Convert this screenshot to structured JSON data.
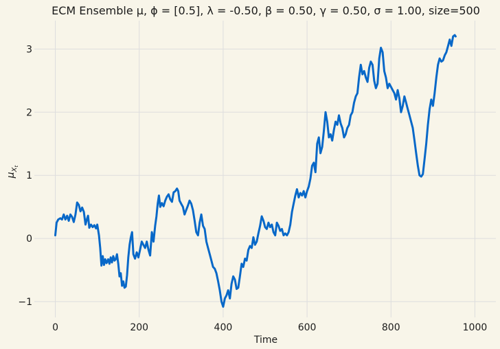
{
  "chart_data": {
    "type": "line",
    "title": "ECM Ensemble μ, ϕ = [0.5], λ = -0.50, β = 0.50, γ = 0.50, σ = 1.00, size=500",
    "xlabel": "Time",
    "ylabel": "μ",
    "ylabel_subscript": "X",
    "ylabel_subsubscript": "t",
    "xlim": [
      -50,
      1050
    ],
    "ylim": [
      -1.25,
      3.45
    ],
    "x_ticks": [
      0,
      200,
      400,
      600,
      800,
      1000
    ],
    "y_ticks": [
      -1,
      0,
      1,
      2,
      3
    ],
    "y_tick_labels": [
      "−1",
      "0",
      "1",
      "2",
      "3"
    ],
    "grid": true,
    "series": [
      {
        "color": "#0868c8",
        "points": [
          [
            0,
            0.05
          ],
          [
            3,
            0.25
          ],
          [
            7,
            0.3
          ],
          [
            12,
            0.32
          ],
          [
            16,
            0.3
          ],
          [
            20,
            0.38
          ],
          [
            24,
            0.3
          ],
          [
            28,
            0.36
          ],
          [
            32,
            0.28
          ],
          [
            36,
            0.38
          ],
          [
            40,
            0.34
          ],
          [
            44,
            0.26
          ],
          [
            48,
            0.38
          ],
          [
            52,
            0.57
          ],
          [
            56,
            0.53
          ],
          [
            60,
            0.43
          ],
          [
            64,
            0.49
          ],
          [
            68,
            0.42
          ],
          [
            72,
            0.22
          ],
          [
            75,
            0.3
          ],
          [
            78,
            0.36
          ],
          [
            81,
            0.17
          ],
          [
            85,
            0.22
          ],
          [
            89,
            0.18
          ],
          [
            93,
            0.21
          ],
          [
            97,
            0.16
          ],
          [
            100,
            0.22
          ],
          [
            104,
            0.05
          ],
          [
            107,
            -0.15
          ],
          [
            110,
            -0.43
          ],
          [
            113,
            -0.28
          ],
          [
            116,
            -0.42
          ],
          [
            119,
            -0.33
          ],
          [
            122,
            -0.39
          ],
          [
            126,
            -0.33
          ],
          [
            129,
            -0.4
          ],
          [
            132,
            -0.3
          ],
          [
            135,
            -0.38
          ],
          [
            138,
            -0.28
          ],
          [
            141,
            -0.35
          ],
          [
            144,
            -0.33
          ],
          [
            147,
            -0.25
          ],
          [
            150,
            -0.4
          ],
          [
            153,
            -0.6
          ],
          [
            156,
            -0.55
          ],
          [
            159,
            -0.75
          ],
          [
            162,
            -0.68
          ],
          [
            165,
            -0.78
          ],
          [
            168,
            -0.76
          ],
          [
            171,
            -0.58
          ],
          [
            174,
            -0.3
          ],
          [
            177,
            -0.1
          ],
          [
            180,
            0.02
          ],
          [
            183,
            0.1
          ],
          [
            186,
            -0.25
          ],
          [
            190,
            -0.32
          ],
          [
            194,
            -0.22
          ],
          [
            198,
            -0.3
          ],
          [
            202,
            -0.18
          ],
          [
            206,
            -0.05
          ],
          [
            210,
            -0.1
          ],
          [
            214,
            -0.15
          ],
          [
            218,
            -0.05
          ],
          [
            222,
            -0.18
          ],
          [
            226,
            -0.27
          ],
          [
            230,
            0.1
          ],
          [
            234,
            -0.05
          ],
          [
            238,
            0.2
          ],
          [
            241,
            0.35
          ],
          [
            244,
            0.55
          ],
          [
            247,
            0.68
          ],
          [
            250,
            0.5
          ],
          [
            254,
            0.56
          ],
          [
            258,
            0.51
          ],
          [
            262,
            0.6
          ],
          [
            266,
            0.66
          ],
          [
            270,
            0.7
          ],
          [
            274,
            0.62
          ],
          [
            278,
            0.58
          ],
          [
            282,
            0.73
          ],
          [
            286,
            0.75
          ],
          [
            290,
            0.79
          ],
          [
            293,
            0.75
          ],
          [
            296,
            0.6
          ],
          [
            300,
            0.55
          ],
          [
            304,
            0.5
          ],
          [
            308,
            0.38
          ],
          [
            312,
            0.45
          ],
          [
            316,
            0.52
          ],
          [
            320,
            0.6
          ],
          [
            324,
            0.55
          ],
          [
            328,
            0.45
          ],
          [
            332,
            0.28
          ],
          [
            336,
            0.1
          ],
          [
            340,
            0.05
          ],
          [
            344,
            0.25
          ],
          [
            348,
            0.38
          ],
          [
            352,
            0.2
          ],
          [
            356,
            0.15
          ],
          [
            360,
            -0.05
          ],
          [
            364,
            -0.15
          ],
          [
            368,
            -0.25
          ],
          [
            372,
            -0.35
          ],
          [
            376,
            -0.45
          ],
          [
            380,
            -0.48
          ],
          [
            384,
            -0.55
          ],
          [
            388,
            -0.68
          ],
          [
            392,
            -0.82
          ],
          [
            396,
            -1.0
          ],
          [
            400,
            -1.08
          ],
          [
            404,
            -0.95
          ],
          [
            408,
            -0.9
          ],
          [
            412,
            -0.82
          ],
          [
            416,
            -0.95
          ],
          [
            420,
            -0.72
          ],
          [
            424,
            -0.6
          ],
          [
            428,
            -0.65
          ],
          [
            432,
            -0.8
          ],
          [
            436,
            -0.78
          ],
          [
            440,
            -0.6
          ],
          [
            444,
            -0.4
          ],
          [
            448,
            -0.45
          ],
          [
            452,
            -0.32
          ],
          [
            456,
            -0.35
          ],
          [
            460,
            -0.18
          ],
          [
            464,
            -0.12
          ],
          [
            468,
            -0.15
          ],
          [
            472,
            0.02
          ],
          [
            476,
            -0.1
          ],
          [
            480,
            -0.05
          ],
          [
            484,
            0.08
          ],
          [
            488,
            0.2
          ],
          [
            492,
            0.35
          ],
          [
            496,
            0.28
          ],
          [
            500,
            0.18
          ],
          [
            504,
            0.15
          ],
          [
            508,
            0.25
          ],
          [
            512,
            0.18
          ],
          [
            516,
            0.22
          ],
          [
            520,
            0.1
          ],
          [
            524,
            0.05
          ],
          [
            528,
            0.25
          ],
          [
            532,
            0.2
          ],
          [
            536,
            0.12
          ],
          [
            540,
            0.15
          ],
          [
            544,
            0.05
          ],
          [
            548,
            0.08
          ],
          [
            552,
            0.05
          ],
          [
            556,
            0.1
          ],
          [
            560,
            0.22
          ],
          [
            564,
            0.42
          ],
          [
            568,
            0.55
          ],
          [
            572,
            0.68
          ],
          [
            576,
            0.78
          ],
          [
            580,
            0.65
          ],
          [
            584,
            0.72
          ],
          [
            588,
            0.68
          ],
          [
            592,
            0.75
          ],
          [
            596,
            0.65
          ],
          [
            600,
            0.75
          ],
          [
            604,
            0.82
          ],
          [
            608,
            0.95
          ],
          [
            612,
            1.15
          ],
          [
            616,
            1.2
          ],
          [
            620,
            1.05
          ],
          [
            624,
            1.5
          ],
          [
            628,
            1.6
          ],
          [
            632,
            1.35
          ],
          [
            636,
            1.45
          ],
          [
            640,
            1.7
          ],
          [
            644,
            2.0
          ],
          [
            648,
            1.85
          ],
          [
            652,
            1.6
          ],
          [
            656,
            1.65
          ],
          [
            660,
            1.55
          ],
          [
            664,
            1.72
          ],
          [
            668,
            1.85
          ],
          [
            672,
            1.8
          ],
          [
            676,
            1.95
          ],
          [
            680,
            1.82
          ],
          [
            684,
            1.75
          ],
          [
            688,
            1.6
          ],
          [
            692,
            1.65
          ],
          [
            696,
            1.75
          ],
          [
            700,
            1.8
          ],
          [
            704,
            1.95
          ],
          [
            708,
            2.0
          ],
          [
            712,
            2.15
          ],
          [
            716,
            2.25
          ],
          [
            720,
            2.3
          ],
          [
            724,
            2.55
          ],
          [
            728,
            2.75
          ],
          [
            732,
            2.6
          ],
          [
            736,
            2.65
          ],
          [
            740,
            2.55
          ],
          [
            744,
            2.48
          ],
          [
            748,
            2.7
          ],
          [
            752,
            2.8
          ],
          [
            756,
            2.75
          ],
          [
            760,
            2.5
          ],
          [
            764,
            2.38
          ],
          [
            768,
            2.45
          ],
          [
            772,
            2.85
          ],
          [
            776,
            3.02
          ],
          [
            780,
            2.95
          ],
          [
            784,
            2.65
          ],
          [
            788,
            2.55
          ],
          [
            792,
            2.38
          ],
          [
            796,
            2.45
          ],
          [
            800,
            2.4
          ],
          [
            804,
            2.35
          ],
          [
            808,
            2.3
          ],
          [
            812,
            2.2
          ],
          [
            816,
            2.35
          ],
          [
            820,
            2.22
          ],
          [
            824,
            2.0
          ],
          [
            828,
            2.1
          ],
          [
            832,
            2.25
          ],
          [
            836,
            2.15
          ],
          [
            840,
            2.05
          ],
          [
            844,
            1.95
          ],
          [
            848,
            1.85
          ],
          [
            852,
            1.75
          ],
          [
            856,
            1.55
          ],
          [
            860,
            1.35
          ],
          [
            864,
            1.15
          ],
          [
            868,
            1.0
          ],
          [
            872,
            0.98
          ],
          [
            876,
            1.02
          ],
          [
            880,
            1.25
          ],
          [
            884,
            1.5
          ],
          [
            888,
            1.8
          ],
          [
            892,
            2.05
          ],
          [
            896,
            2.2
          ],
          [
            900,
            2.1
          ],
          [
            904,
            2.3
          ],
          [
            908,
            2.55
          ],
          [
            912,
            2.75
          ],
          [
            916,
            2.85
          ],
          [
            920,
            2.8
          ],
          [
            924,
            2.82
          ],
          [
            928,
            2.9
          ],
          [
            932,
            2.95
          ],
          [
            936,
            3.05
          ],
          [
            940,
            3.15
          ],
          [
            944,
            3.05
          ],
          [
            948,
            3.2
          ],
          [
            952,
            3.22
          ],
          [
            954,
            3.2
          ]
        ]
      }
    ]
  }
}
